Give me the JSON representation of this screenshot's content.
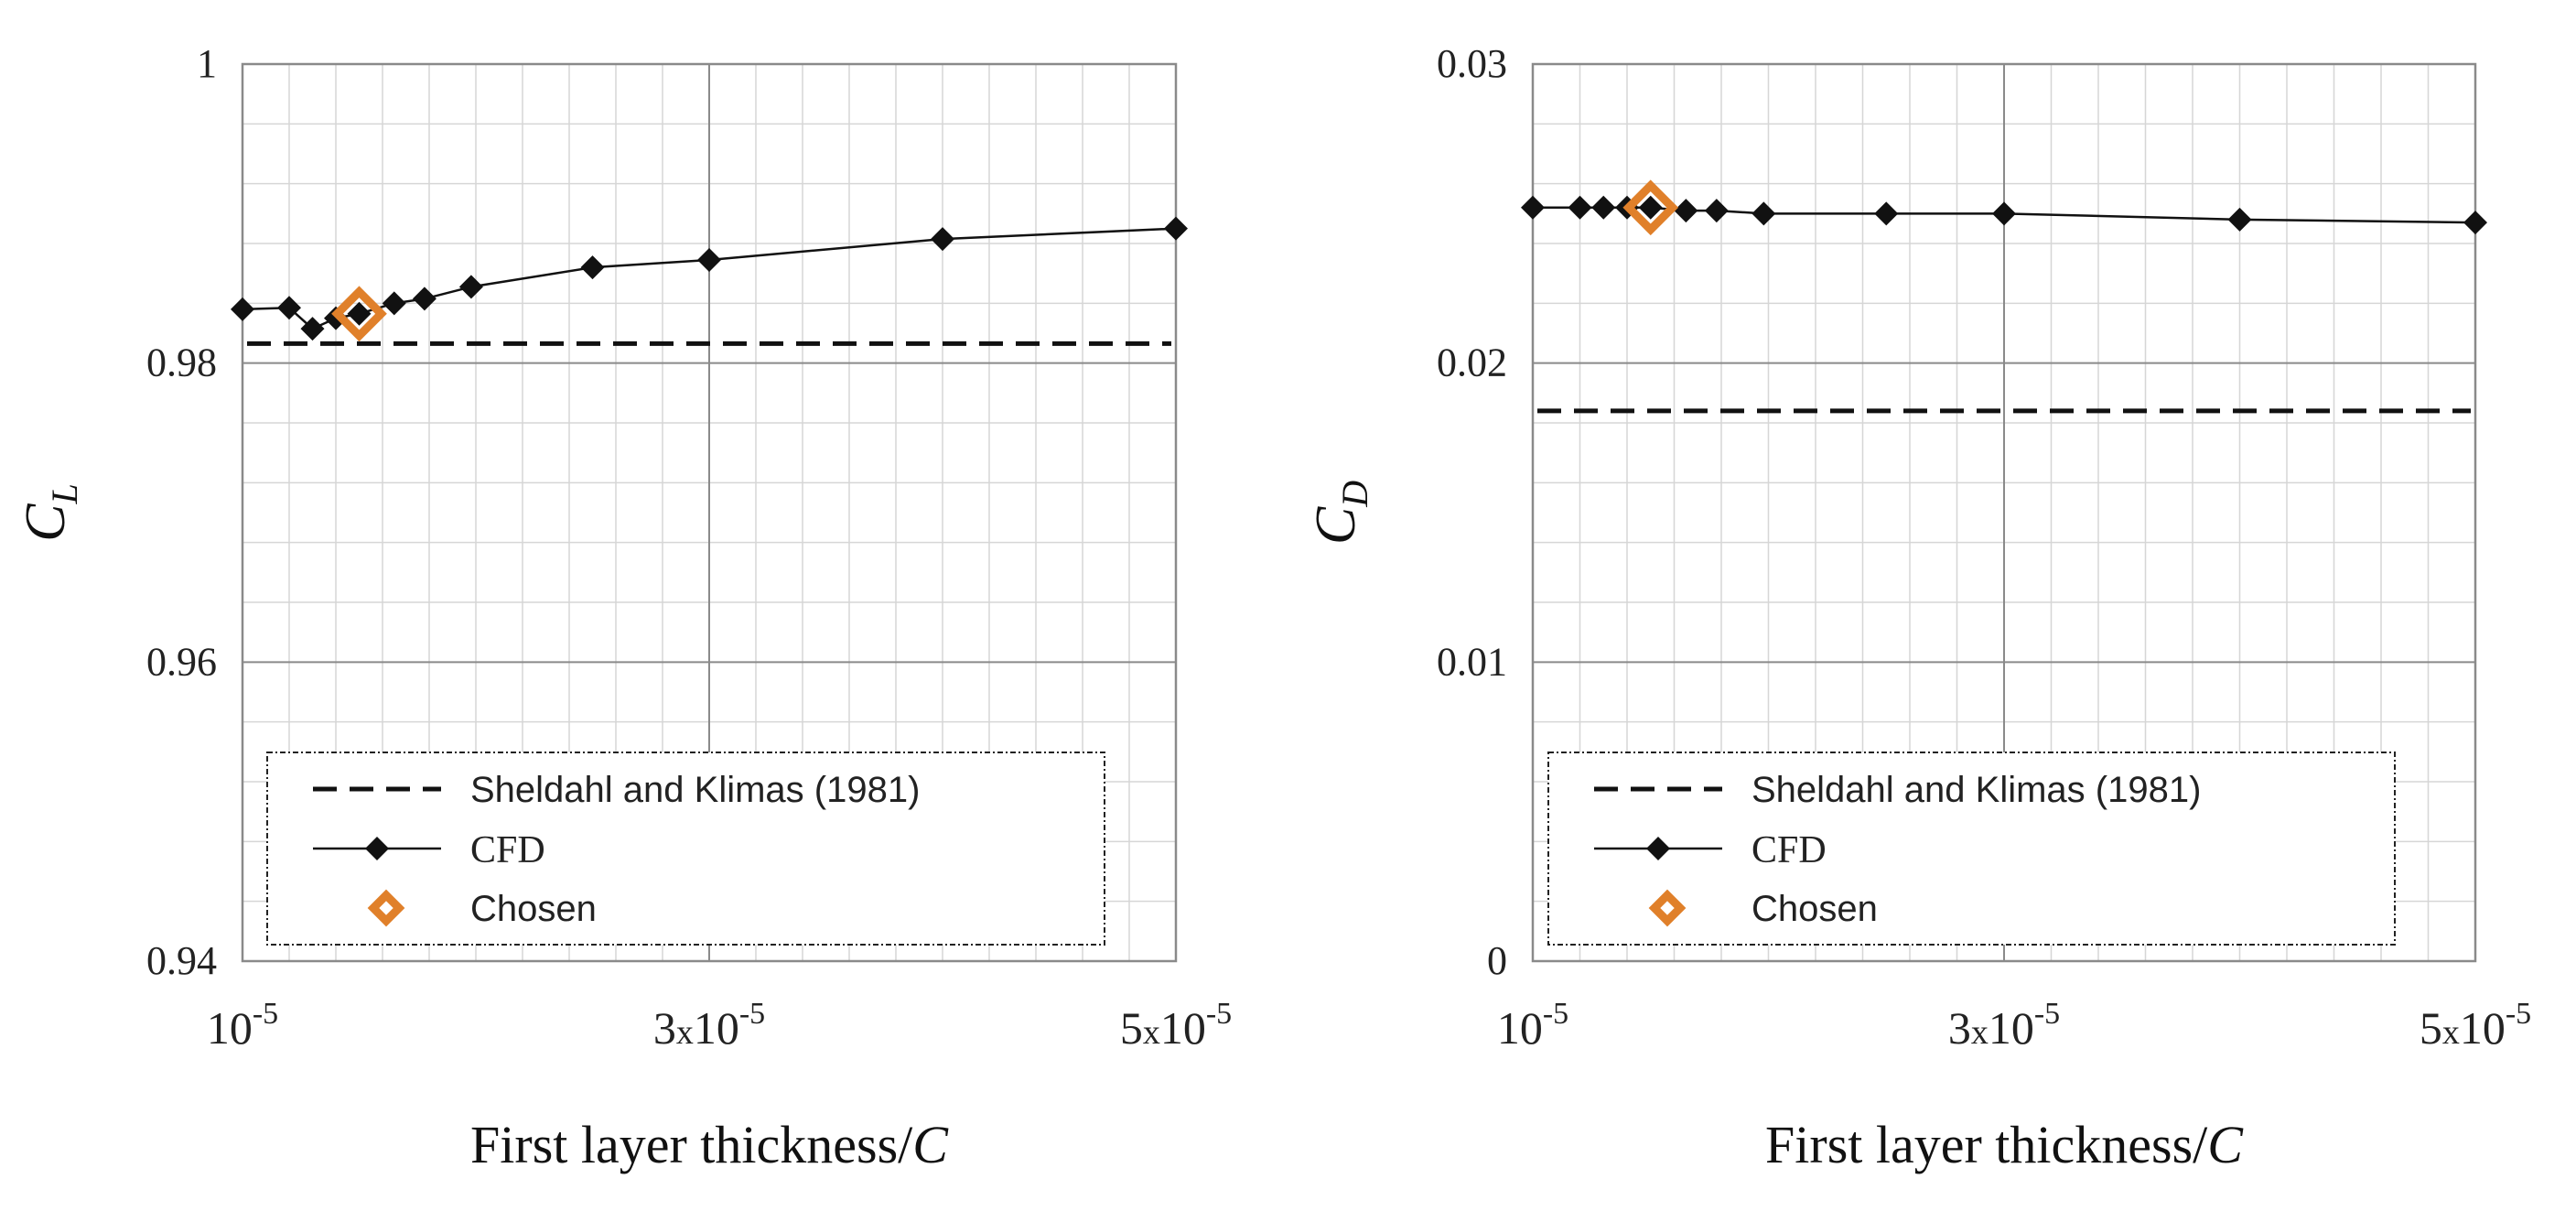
{
  "chart_data": [
    {
      "type": "line",
      "ylabel": "C",
      "ylabel_sub": "L",
      "xlabel": "First layer thickness/",
      "xlabel_var": "C",
      "xlim": [
        1.0,
        5.0
      ],
      "ylim": [
        0.94,
        1.0
      ],
      "x_scale": "x10^-5",
      "y_ticks": [
        {
          "value": 0.94,
          "label": "0.94"
        },
        {
          "value": 0.96,
          "label": "0.96"
        },
        {
          "value": 0.98,
          "label": "0.98"
        },
        {
          "value": 1.0,
          "label": "1"
        }
      ],
      "x_ticks": [
        {
          "value": 1.0,
          "mant": "",
          "base": "10",
          "exp": "-5"
        },
        {
          "value": 3.0,
          "mant": "3",
          "base": "10",
          "exp": "-5"
        },
        {
          "value": 5.0,
          "mant": "5",
          "base": "10",
          "exp": "-5"
        }
      ],
      "series": [
        {
          "name": "Sheldahl and Klimas (1981)",
          "kind": "reference",
          "value": 0.9813
        },
        {
          "name": "CFD",
          "kind": "cfd",
          "x": [
            1.0,
            1.2,
            1.3,
            1.4,
            1.5,
            1.65,
            1.78,
            1.98,
            2.5,
            3.0,
            4.0,
            5.0
          ],
          "y": [
            0.9836,
            0.9837,
            0.9823,
            0.983,
            0.9833,
            0.984,
            0.9843,
            0.9851,
            0.9864,
            0.9869,
            0.9883,
            0.989
          ]
        },
        {
          "name": "Chosen",
          "kind": "chosen",
          "x": [
            1.5
          ],
          "y": [
            0.9833
          ]
        }
      ],
      "legend": {
        "position": "bottom-center",
        "entries": [
          "Sheldahl and Klimas (1981)",
          "CFD",
          "Chosen"
        ]
      }
    },
    {
      "type": "line",
      "ylabel": "C",
      "ylabel_sub": "D",
      "xlabel": "First layer thickness/",
      "xlabel_var": "C",
      "xlim": [
        1.0,
        5.0
      ],
      "ylim": [
        0.0,
        0.03
      ],
      "x_scale": "x10^-5",
      "y_ticks": [
        {
          "value": 0.0,
          "label": "0"
        },
        {
          "value": 0.01,
          "label": "0.01"
        },
        {
          "value": 0.02,
          "label": "0.02"
        },
        {
          "value": 0.03,
          "label": "0.03"
        }
      ],
      "x_ticks": [
        {
          "value": 1.0,
          "mant": "",
          "base": "10",
          "exp": "-5"
        },
        {
          "value": 3.0,
          "mant": "3",
          "base": "10",
          "exp": "-5"
        },
        {
          "value": 5.0,
          "mant": "5",
          "base": "10",
          "exp": "-5"
        }
      ],
      "series": [
        {
          "name": "Sheldahl and Klimas (1981)",
          "kind": "reference",
          "value": 0.0184
        },
        {
          "name": "CFD",
          "kind": "cfd",
          "x": [
            1.0,
            1.2,
            1.3,
            1.4,
            1.5,
            1.65,
            1.78,
            1.98,
            2.5,
            3.0,
            4.0,
            5.0
          ],
          "y": [
            0.0252,
            0.0252,
            0.0252,
            0.0252,
            0.0252,
            0.0251,
            0.0251,
            0.025,
            0.025,
            0.025,
            0.0248,
            0.0247
          ]
        },
        {
          "name": "Chosen",
          "kind": "chosen",
          "x": [
            1.5
          ],
          "y": [
            0.0252
          ]
        }
      ],
      "legend": {
        "position": "bottom-center",
        "entries": [
          "Sheldahl and Klimas (1981)",
          "CFD",
          "Chosen"
        ]
      }
    }
  ]
}
